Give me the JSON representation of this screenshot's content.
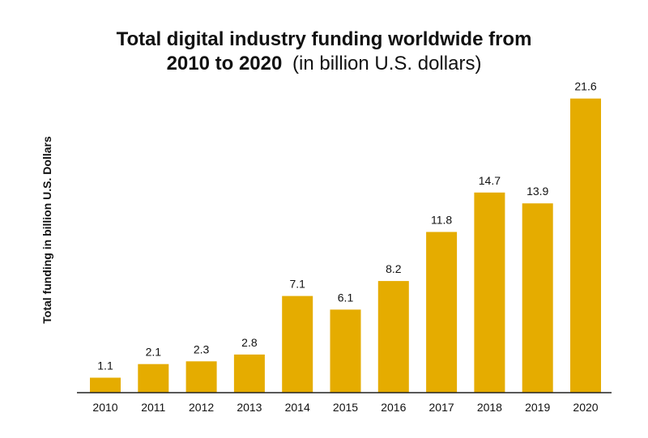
{
  "chart_data": {
    "type": "bar",
    "title_line1": "Total digital industry funding worldwide from",
    "title_line2_bold": "2010 to 2020",
    "title_line2_normal": "(in billion U.S. dollars)",
    "xlabel": "",
    "ylabel": "Total funding in billion U.S. Dollars",
    "categories": [
      "2010",
      "2011",
      "2012",
      "2013",
      "2014",
      "2015",
      "2016",
      "2017",
      "2018",
      "2019",
      "2020"
    ],
    "values": [
      1.1,
      2.1,
      2.3,
      2.8,
      7.1,
      6.1,
      8.2,
      11.8,
      14.7,
      13.9,
      21.6
    ],
    "value_labels": [
      "1.1",
      "2.1",
      "2.3",
      "2.8",
      "7.1",
      "6.1",
      "8.2",
      "11.8",
      "14.7",
      "13.9",
      "21.6"
    ],
    "ylim": [
      0,
      22
    ],
    "grid": false,
    "legend": "none",
    "bar_color": "#E5AC00",
    "axis_color": "#222222"
  }
}
